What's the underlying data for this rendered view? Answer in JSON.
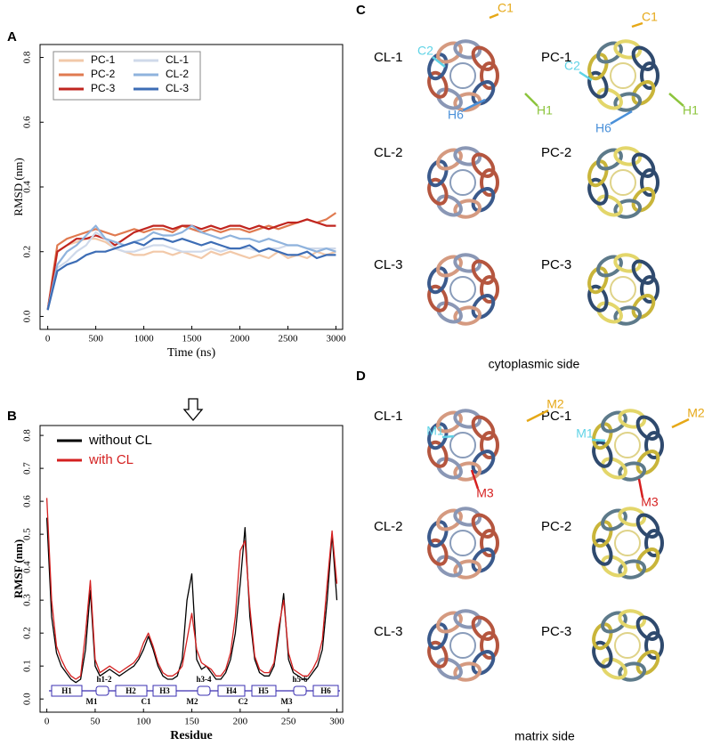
{
  "panel_labels": [
    "A",
    "B"
  ],
  "chart_data": [
    {
      "type": "line",
      "xlabel": "Time (ns)",
      "ylabel": "RMSD (nm)",
      "legend": "upper left",
      "x": [
        0,
        100,
        200,
        300,
        400,
        500,
        600,
        700,
        800,
        900,
        1000,
        1100,
        1200,
        1300,
        1400,
        1500,
        1600,
        1700,
        1800,
        1900,
        2000,
        2100,
        2200,
        2300,
        2400,
        2500,
        2600,
        2700,
        2800,
        2900,
        3000
      ],
      "xlim": [
        -80,
        3070
      ],
      "xticks": [
        0,
        500,
        1000,
        1500,
        2000,
        2500,
        3000
      ],
      "ylim": [
        -0.04,
        0.84
      ],
      "yticks": [
        {
          "value": 0,
          "label": "0.0"
        },
        0.2,
        0.4,
        0.6,
        0.8
      ],
      "series": [
        {
          "name": "PC-1",
          "color": "#f2c9a9",
          "values": [
            0.02,
            0.2,
            0.22,
            0.23,
            0.24,
            0.24,
            0.23,
            0.21,
            0.2,
            0.19,
            0.19,
            0.2,
            0.2,
            0.19,
            0.2,
            0.19,
            0.18,
            0.2,
            0.19,
            0.2,
            0.19,
            0.18,
            0.19,
            0.18,
            0.2,
            0.18,
            0.19,
            0.18,
            0.2,
            0.19,
            0.2
          ]
        },
        {
          "name": "PC-2",
          "color": "#e07a50",
          "values": [
            0.02,
            0.22,
            0.24,
            0.25,
            0.26,
            0.27,
            0.26,
            0.25,
            0.26,
            0.27,
            0.26,
            0.27,
            0.27,
            0.26,
            0.28,
            0.27,
            0.26,
            0.27,
            0.26,
            0.27,
            0.27,
            0.26,
            0.27,
            0.28,
            0.27,
            0.28,
            0.29,
            0.3,
            0.29,
            0.3,
            0.32
          ]
        },
        {
          "name": "PC-3",
          "color": "#c0251f",
          "values": [
            0.02,
            0.2,
            0.22,
            0.24,
            0.24,
            0.25,
            0.24,
            0.22,
            0.24,
            0.26,
            0.27,
            0.28,
            0.28,
            0.27,
            0.28,
            0.28,
            0.27,
            0.28,
            0.27,
            0.28,
            0.28,
            0.27,
            0.28,
            0.27,
            0.28,
            0.29,
            0.29,
            0.3,
            0.29,
            0.28,
            0.28
          ]
        },
        {
          "name": "CL-1",
          "color": "#cfd9ea",
          "values": [
            0.02,
            0.15,
            0.17,
            0.2,
            0.22,
            0.26,
            0.24,
            0.21,
            0.2,
            0.2,
            0.21,
            0.22,
            0.22,
            0.21,
            0.2,
            0.2,
            0.2,
            0.21,
            0.2,
            0.21,
            0.21,
            0.21,
            0.2,
            0.21,
            0.21,
            0.22,
            0.22,
            0.21,
            0.21,
            0.21,
            0.21
          ]
        },
        {
          "name": "CL-2",
          "color": "#8fb3dd",
          "values": [
            0.02,
            0.16,
            0.2,
            0.22,
            0.25,
            0.28,
            0.24,
            0.23,
            0.22,
            0.23,
            0.24,
            0.26,
            0.25,
            0.25,
            0.26,
            0.28,
            0.26,
            0.25,
            0.24,
            0.25,
            0.24,
            0.24,
            0.23,
            0.24,
            0.23,
            0.22,
            0.22,
            0.21,
            0.2,
            0.21,
            0.2
          ]
        },
        {
          "name": "CL-3",
          "color": "#3d6db5",
          "values": [
            0.02,
            0.14,
            0.16,
            0.17,
            0.19,
            0.2,
            0.2,
            0.21,
            0.22,
            0.23,
            0.22,
            0.24,
            0.24,
            0.23,
            0.24,
            0.23,
            0.22,
            0.23,
            0.22,
            0.21,
            0.21,
            0.22,
            0.2,
            0.21,
            0.2,
            0.19,
            0.19,
            0.2,
            0.18,
            0.19,
            0.19
          ]
        }
      ]
    },
    {
      "type": "line",
      "xlabel": "Residue",
      "ylabel": "RMSF (nm)",
      "legend": "upper left",
      "x": [
        0,
        5,
        10,
        15,
        20,
        25,
        30,
        35,
        40,
        45,
        50,
        55,
        60,
        65,
        70,
        75,
        80,
        85,
        90,
        95,
        100,
        105,
        110,
        115,
        120,
        125,
        130,
        135,
        140,
        145,
        150,
        155,
        160,
        165,
        170,
        175,
        180,
        185,
        190,
        195,
        200,
        205,
        210,
        215,
        220,
        225,
        230,
        235,
        240,
        245,
        250,
        255,
        260,
        265,
        270,
        275,
        280,
        285,
        290,
        295,
        300
      ],
      "xlim": [
        -7,
        306
      ],
      "xticks": [
        0,
        50,
        100,
        150,
        200,
        250,
        300
      ],
      "ylim": [
        -0.04,
        0.83
      ],
      "yticks": [
        {
          "value": 0,
          "label": "0.0"
        },
        0.1,
        0.2,
        0.3,
        0.4,
        0.5,
        0.6,
        0.7,
        0.8
      ],
      "series": [
        {
          "name": "without CL",
          "color": "#000000",
          "values": [
            0.55,
            0.25,
            0.14,
            0.1,
            0.08,
            0.06,
            0.05,
            0.06,
            0.15,
            0.33,
            0.1,
            0.07,
            0.08,
            0.09,
            0.08,
            0.07,
            0.08,
            0.09,
            0.1,
            0.12,
            0.15,
            0.19,
            0.15,
            0.1,
            0.07,
            0.06,
            0.06,
            0.07,
            0.12,
            0.3,
            0.38,
            0.12,
            0.09,
            0.1,
            0.08,
            0.06,
            0.06,
            0.08,
            0.12,
            0.2,
            0.35,
            0.52,
            0.25,
            0.12,
            0.08,
            0.07,
            0.07,
            0.1,
            0.2,
            0.32,
            0.12,
            0.08,
            0.07,
            0.06,
            0.06,
            0.08,
            0.1,
            0.15,
            0.3,
            0.5,
            0.3
          ]
        },
        {
          "name": "with CL",
          "color": "#d42020",
          "values": [
            0.61,
            0.3,
            0.16,
            0.12,
            0.09,
            0.07,
            0.06,
            0.07,
            0.2,
            0.36,
            0.12,
            0.08,
            0.09,
            0.1,
            0.09,
            0.08,
            0.09,
            0.1,
            0.11,
            0.13,
            0.17,
            0.2,
            0.16,
            0.11,
            0.08,
            0.07,
            0.07,
            0.08,
            0.1,
            0.18,
            0.26,
            0.15,
            0.11,
            0.1,
            0.09,
            0.07,
            0.07,
            0.09,
            0.14,
            0.25,
            0.45,
            0.48,
            0.28,
            0.13,
            0.09,
            0.08,
            0.08,
            0.11,
            0.22,
            0.3,
            0.14,
            0.09,
            0.08,
            0.07,
            0.07,
            0.09,
            0.12,
            0.18,
            0.35,
            0.51,
            0.35
          ]
        }
      ],
      "topology_top": [
        "H1",
        "h1-2",
        "H2",
        "H3",
        "h3-4",
        "H4",
        "H5",
        "h5-6",
        "H6"
      ],
      "topology_bottom": [
        "M1",
        "C1",
        "M2",
        "C2",
        "M3"
      ]
    }
  ],
  "structures": [
    {
      "label": "C",
      "caption": "cytoplasmic side",
      "models": [
        "CL-1",
        "PC-1",
        "CL-2",
        "PC-2",
        "CL-3",
        "PC-3"
      ],
      "markers": [
        "C1",
        "C2",
        "H6",
        "H1",
        "C1",
        "C2",
        "H6",
        "H1"
      ]
    },
    {
      "label": "D",
      "caption": "matrix side",
      "models": [
        "CL-1",
        "PC-1",
        "CL-2",
        "PC-2",
        "CL-3",
        "PC-3"
      ],
      "markers": [
        "M1",
        "M2",
        "M3",
        "M1",
        "M2",
        "M3"
      ]
    }
  ]
}
